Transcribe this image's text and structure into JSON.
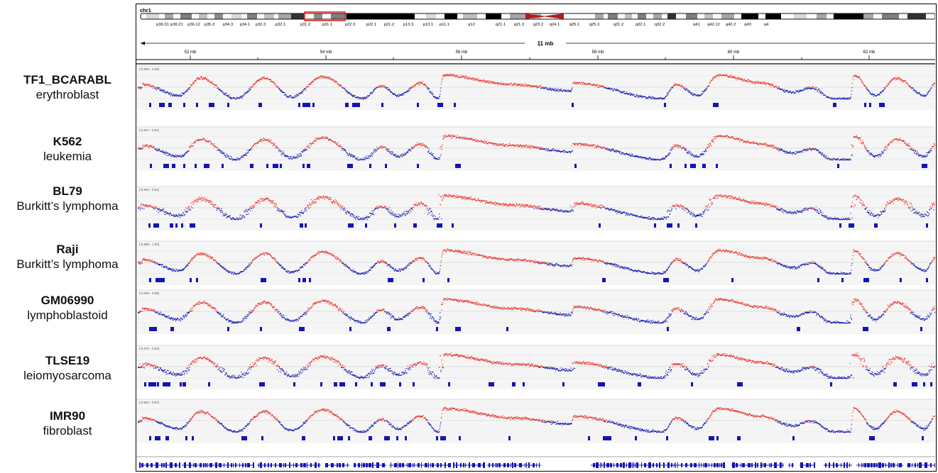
{
  "ideogram": {
    "chromosome": "chr1",
    "bands": [
      "p36.31",
      "p36.21",
      "p36.12",
      "p35.3",
      "p34.3",
      "p34.1",
      "p32.3",
      "p32.1",
      "p31.2",
      "p31.1",
      "p22.3",
      "p22.1",
      "p21.2",
      "p13.3",
      "p13.1",
      "p11.1",
      "q12",
      "q21.1",
      "q21.3",
      "q23.2",
      "q24.1",
      "q25.1",
      "q25.3",
      "q31.2",
      "q32.1",
      "q32.2",
      "q41",
      "q42.12",
      "q42.2",
      "q43",
      "q4"
    ]
  },
  "ruler": {
    "span_label": "11 mb",
    "ticks": [
      "52 mb",
      "54 mb",
      "56 mb",
      "58 mb",
      "60 mb",
      "62 mb"
    ]
  },
  "samples": [
    {
      "name": "TF1_BCARABL",
      "type": "erythroblast",
      "range": "[-0,983 - 0,83]"
    },
    {
      "name": "K562",
      "type": "leukemia",
      "range": "[-0,917 - 0,91]"
    },
    {
      "name": "BL79",
      "type": "Burkitt’s lymphoma",
      "range": "[-0,942 - 0,91]"
    },
    {
      "name": "Raji",
      "type": "Burkitt’s lymphoma",
      "range": "[-0,988 - 1,00]"
    },
    {
      "name": "GM06990",
      "type": "lymphoblastoid",
      "range": "[-2,000 - 0,96]"
    },
    {
      "name": "TLSE19",
      "type": "leiomyosarcoma",
      "range": "[-0,973 - 0,92]"
    },
    {
      "name": "IMR90",
      "type": "fibroblast",
      "range": "[-0,964 - 0,87]"
    }
  ],
  "colors": {
    "positive": "#e8322d",
    "negative": "#1518b0",
    "segments": "#1414b4",
    "centromere": "#b31b1b",
    "highlight": "#e02020",
    "track_bg": "#f5f5f5"
  }
}
